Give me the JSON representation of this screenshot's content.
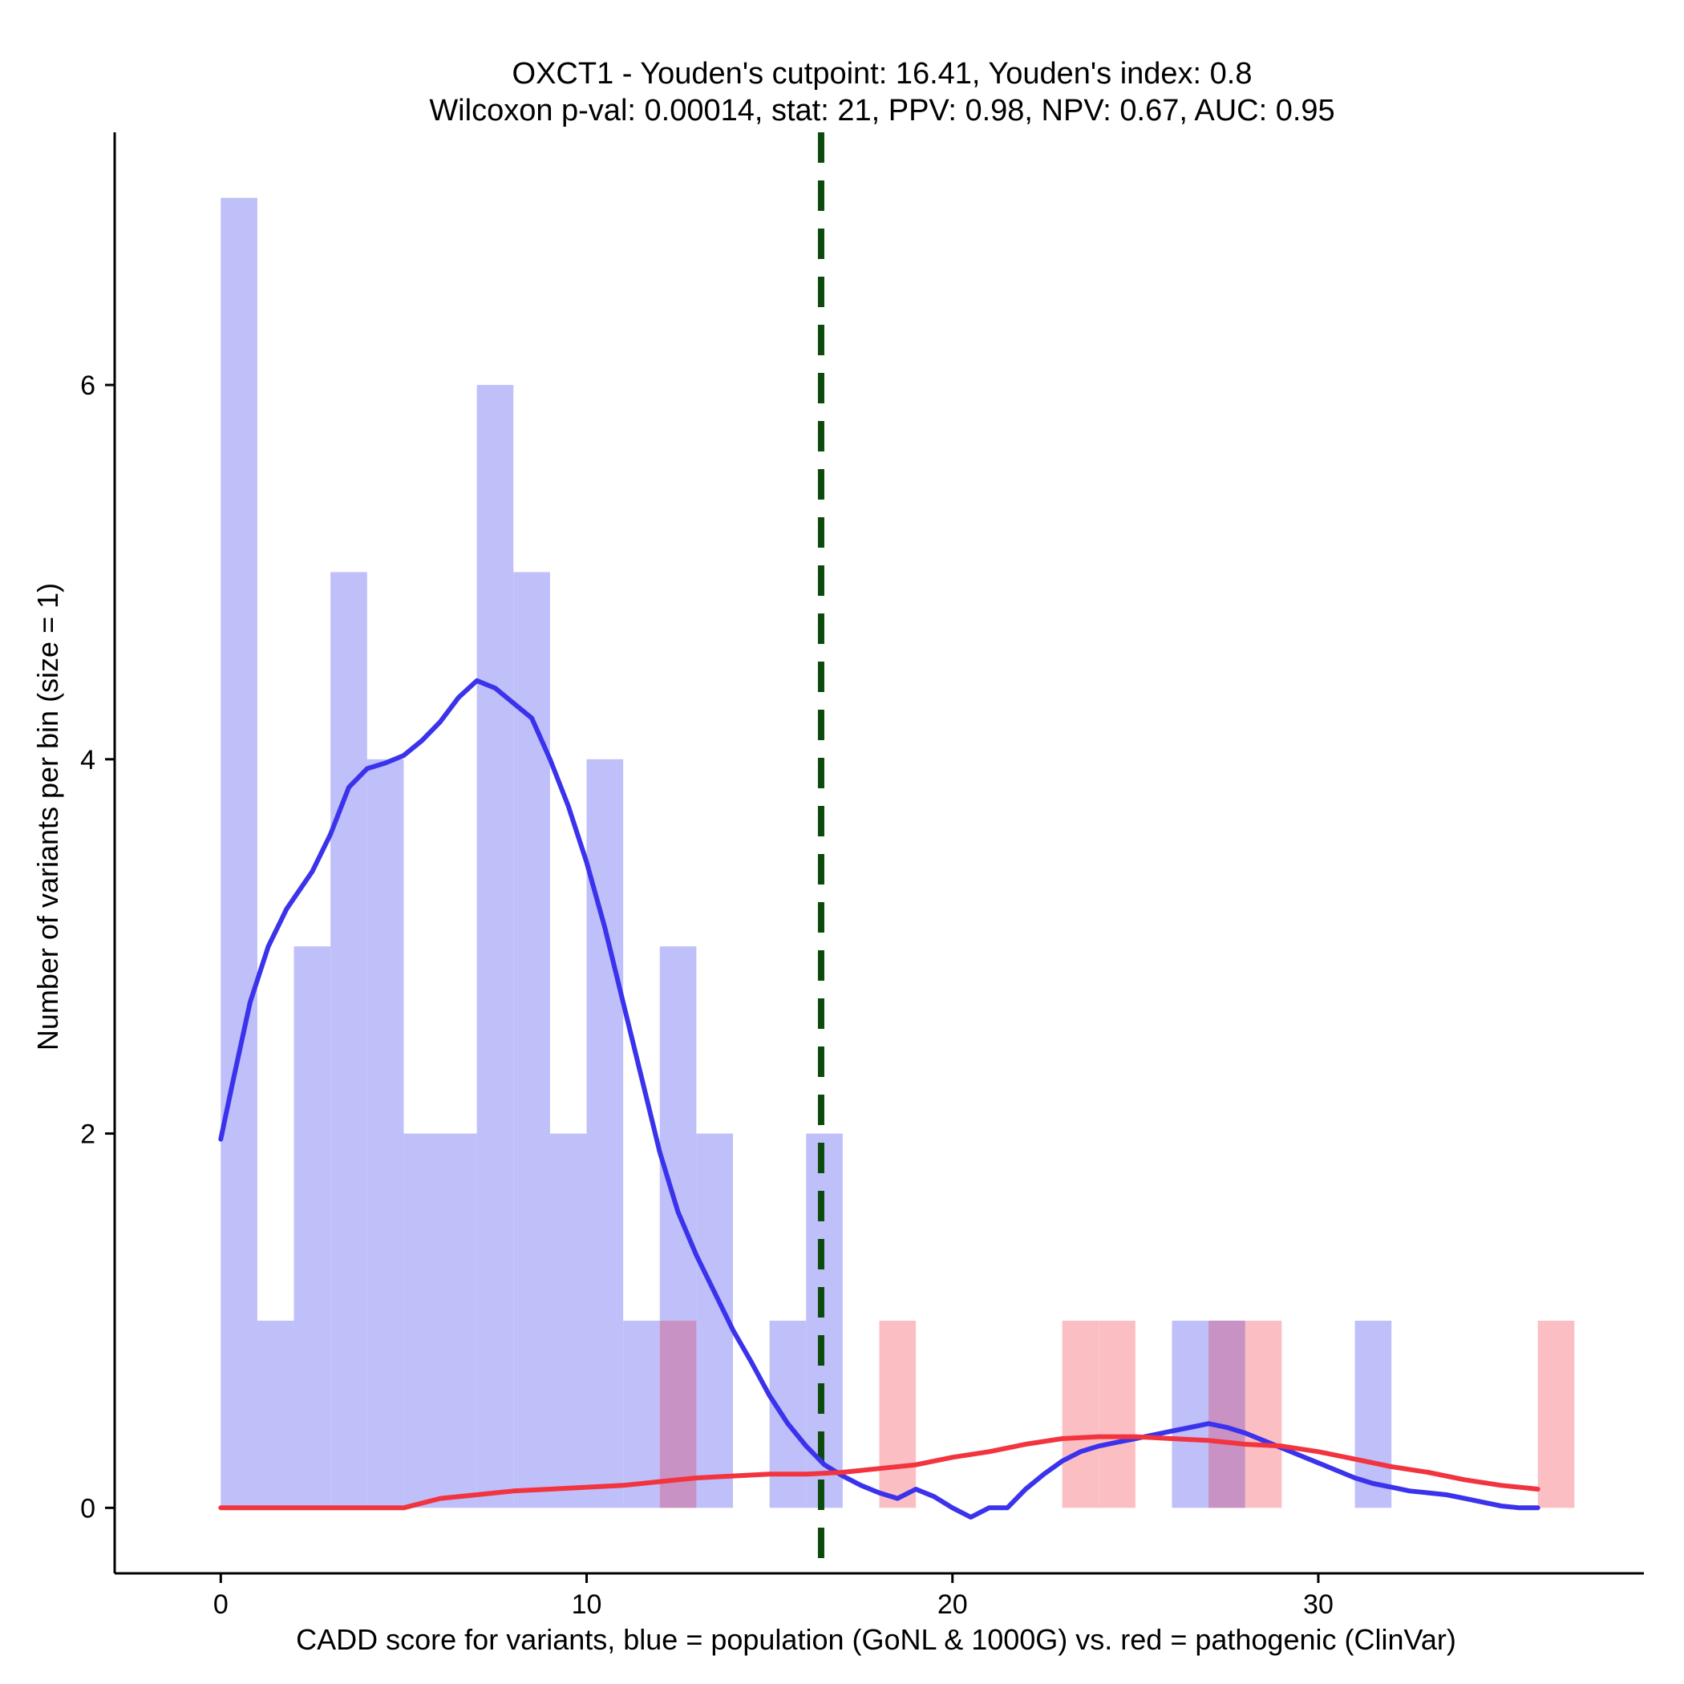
{
  "chart_data": {
    "type": "histogram",
    "title_line1": "OXCT1 - Youden's cutpoint: 16.41, Youden's index: 0.8",
    "title_line2": "Wilcoxon p-val: 0.00014, stat: 21, PPV: 0.98, NPV: 0.67, AUC: 0.95",
    "xlabel": "CADD score for variants, blue = population (GoNL & 1000G) vs. red = pathogenic (ClinVar)",
    "ylabel": "Number of variants per bin (size = 1)",
    "xlim": [
      -2.9,
      38.9
    ],
    "ylim": [
      -0.35,
      7.35
    ],
    "xticks": [
      0,
      10,
      20,
      30
    ],
    "yticks": [
      0,
      2,
      4,
      6
    ],
    "bin_size": 1,
    "cutpoint": 16.41,
    "colors": {
      "population_bar": "#bfbffa",
      "pathogenic_bar": "#fbbfc3",
      "overlap_bar": "#c992c4",
      "population_line": "#3b33ec",
      "pathogenic_line": "#f2343f",
      "cutpoint_line": "#0c4a0c",
      "axis": "#000000"
    },
    "series": [
      {
        "name": "population (GoNL & 1000G)",
        "bins": [
          0,
          1,
          2,
          3,
          4,
          5,
          6,
          7,
          8,
          9,
          10,
          11,
          12,
          13,
          15,
          16,
          26,
          27,
          31
        ],
        "counts": [
          7,
          1,
          3,
          5,
          4,
          2,
          2,
          6,
          5,
          2,
          4,
          1,
          3,
          2,
          1,
          2,
          1,
          1,
          1
        ],
        "density_curve": [
          [
            0,
            1.97
          ],
          [
            0.3,
            2.25
          ],
          [
            0.8,
            2.7
          ],
          [
            1.3,
            3.0
          ],
          [
            1.8,
            3.2
          ],
          [
            2.5,
            3.4
          ],
          [
            3,
            3.6
          ],
          [
            3.5,
            3.85
          ],
          [
            4,
            3.95
          ],
          [
            4.5,
            3.98
          ],
          [
            5,
            4.02
          ],
          [
            5.5,
            4.1
          ],
          [
            6,
            4.2
          ],
          [
            6.5,
            4.33
          ],
          [
            7,
            4.42
          ],
          [
            7.5,
            4.38
          ],
          [
            8,
            4.3
          ],
          [
            8.5,
            4.22
          ],
          [
            9,
            4.0
          ],
          [
            9.5,
            3.75
          ],
          [
            10,
            3.45
          ],
          [
            10.5,
            3.1
          ],
          [
            11,
            2.7
          ],
          [
            11.5,
            2.3
          ],
          [
            12,
            1.9
          ],
          [
            12.5,
            1.58
          ],
          [
            13,
            1.35
          ],
          [
            13.5,
            1.15
          ],
          [
            14,
            0.95
          ],
          [
            14.5,
            0.78
          ],
          [
            15,
            0.6
          ],
          [
            15.5,
            0.45
          ],
          [
            16,
            0.33
          ],
          [
            16.5,
            0.23
          ],
          [
            17,
            0.17
          ],
          [
            17.5,
            0.12
          ],
          [
            18,
            0.08
          ],
          [
            18.5,
            0.05
          ],
          [
            19,
            0.1
          ],
          [
            19.5,
            0.06
          ],
          [
            20,
            0.0
          ],
          [
            20.5,
            -0.05
          ],
          [
            21,
            0.0
          ],
          [
            21.5,
            0.0
          ],
          [
            22,
            0.1
          ],
          [
            22.5,
            0.18
          ],
          [
            23,
            0.25
          ],
          [
            23.5,
            0.3
          ],
          [
            24,
            0.33
          ],
          [
            24.5,
            0.35
          ],
          [
            25,
            0.37
          ],
          [
            25.5,
            0.39
          ],
          [
            26,
            0.41
          ],
          [
            26.5,
            0.43
          ],
          [
            27,
            0.45
          ],
          [
            27.5,
            0.43
          ],
          [
            28,
            0.4
          ],
          [
            28.5,
            0.36
          ],
          [
            29,
            0.32
          ],
          [
            29.5,
            0.28
          ],
          [
            30,
            0.24
          ],
          [
            30.5,
            0.2
          ],
          [
            31,
            0.16
          ],
          [
            31.5,
            0.13
          ],
          [
            32,
            0.11
          ],
          [
            32.5,
            0.09
          ],
          [
            33,
            0.08
          ],
          [
            33.5,
            0.07
          ],
          [
            34,
            0.05
          ],
          [
            34.5,
            0.03
          ],
          [
            35,
            0.01
          ],
          [
            35.5,
            0.0
          ],
          [
            36,
            0.0
          ]
        ]
      },
      {
        "name": "pathogenic (ClinVar)",
        "bins": [
          12,
          18,
          23,
          24,
          27,
          28,
          36
        ],
        "counts": [
          1,
          1,
          1,
          1,
          1,
          1,
          1
        ],
        "density_curve": [
          [
            0,
            0.0
          ],
          [
            1,
            0.0
          ],
          [
            2,
            0.0
          ],
          [
            3,
            0.0
          ],
          [
            4,
            0.0
          ],
          [
            5,
            0.0
          ],
          [
            6,
            0.05
          ],
          [
            7,
            0.07
          ],
          [
            8,
            0.09
          ],
          [
            9,
            0.1
          ],
          [
            10,
            0.11
          ],
          [
            11,
            0.12
          ],
          [
            12,
            0.14
          ],
          [
            13,
            0.16
          ],
          [
            14,
            0.17
          ],
          [
            15,
            0.18
          ],
          [
            16,
            0.18
          ],
          [
            17,
            0.19
          ],
          [
            18,
            0.21
          ],
          [
            19,
            0.23
          ],
          [
            20,
            0.27
          ],
          [
            21,
            0.3
          ],
          [
            22,
            0.34
          ],
          [
            23,
            0.37
          ],
          [
            24,
            0.38
          ],
          [
            25,
            0.38
          ],
          [
            26,
            0.37
          ],
          [
            27,
            0.36
          ],
          [
            28,
            0.34
          ],
          [
            29,
            0.33
          ],
          [
            30,
            0.3
          ],
          [
            31,
            0.26
          ],
          [
            32,
            0.22
          ],
          [
            33,
            0.19
          ],
          [
            34,
            0.15
          ],
          [
            35,
            0.12
          ],
          [
            36,
            0.1
          ]
        ]
      }
    ]
  }
}
